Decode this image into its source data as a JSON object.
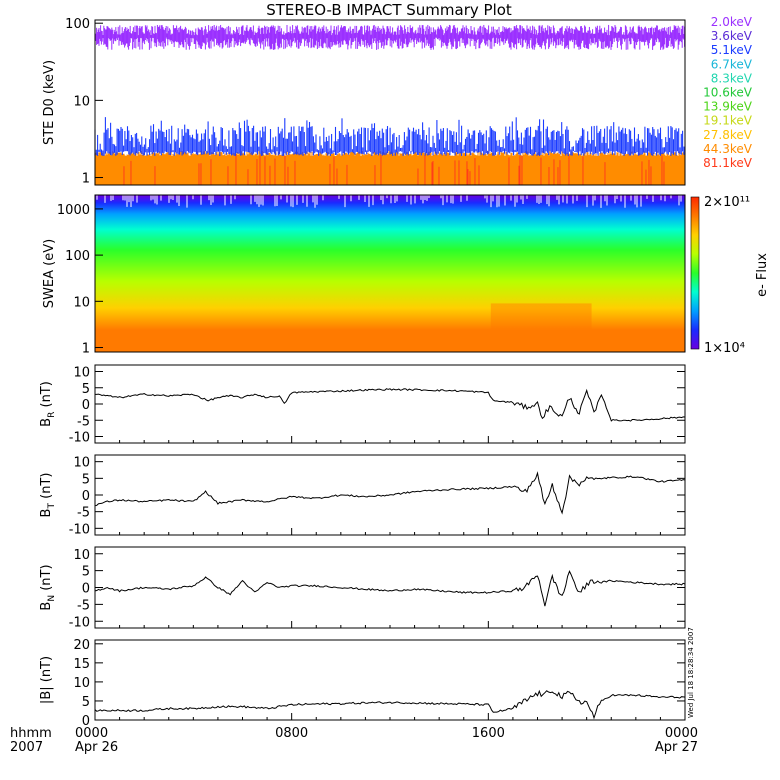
{
  "chart_data": {
    "title": "STEREO-B IMPACT Summary Plot",
    "type": "line",
    "x_axis": {
      "time_label": "hhmm",
      "year_label": "2007",
      "ticks": [
        {
          "time": "0000",
          "date": "Apr 26"
        },
        {
          "time": "0800",
          "date": ""
        },
        {
          "time": "1600",
          "date": ""
        },
        {
          "time": "0000",
          "date": "Apr 27"
        }
      ],
      "xlim_hours": [
        0,
        24
      ]
    },
    "stamp": "Wed Jul 18 18:28:34 2007",
    "panels": [
      {
        "id": "ste",
        "type": "line",
        "ylabel": "STE D0 (keV)",
        "yscale": "log",
        "ylim": [
          0.8,
          110
        ],
        "yticks": [
          "1",
          "10",
          "100"
        ],
        "legend": {
          "placement": "right",
          "entries": [
            {
              "label": "2.0keV",
              "color": "#9b30ff"
            },
            {
              "label": "3.6keV",
              "color": "#5a2bd6"
            },
            {
              "label": "5.1keV",
              "color": "#1a3bff"
            },
            {
              "label": "6.7keV",
              "color": "#18b6d8"
            },
            {
              "label": "8.3keV",
              "color": "#22d6b0"
            },
            {
              "label": "10.6keV",
              "color": "#22c838"
            },
            {
              "label": "13.9keV",
              "color": "#4cd417"
            },
            {
              "label": "19.1keV",
              "color": "#c6d817"
            },
            {
              "label": "27.8keV",
              "color": "#ffc000"
            },
            {
              "label": "44.3keV",
              "color": "#ff8c00"
            },
            {
              "label": "81.1keV",
              "color": "#ff3a1a"
            }
          ]
        },
        "series": [
          {
            "name": "2.0keV",
            "typical_range": [
              45,
              95
            ]
          },
          {
            "name": "5.1keV",
            "typical_range": [
              2,
              6
            ]
          },
          {
            "name": "44.3keV",
            "typical_range": [
              1,
              2.1
            ]
          }
        ]
      },
      {
        "id": "swea",
        "type": "heatmap",
        "ylabel": "SWEA (eV)",
        "yscale": "log",
        "ylim": [
          0.8,
          2000
        ],
        "yticks": [
          "1",
          "10",
          "100",
          "1000"
        ],
        "colorbar": {
          "label": "e- Flux",
          "max_label": "2×10¹¹",
          "min_label": "1×10⁴",
          "colors": [
            "#ff2a00",
            "#ff7a00",
            "#ffd000",
            "#b8ff00",
            "#2aff2a",
            "#00ffd0",
            "#00a0ff",
            "#1a2aff",
            "#6a00e0"
          ]
        }
      },
      {
        "id": "br",
        "type": "line",
        "ylabel": "B",
        "ylabel_sub": "R",
        "ylabel_unit": " (nT)",
        "ylim": [
          -12,
          12
        ],
        "yticks": [
          "10",
          "5",
          "0",
          "-5",
          "-10"
        ],
        "x_hours": [
          0,
          0.5,
          1,
          2,
          3,
          4,
          4.6,
          5,
          5.5,
          6,
          6.5,
          7,
          7.5,
          7.7,
          8,
          9,
          10,
          11,
          12,
          13,
          14,
          15,
          16,
          16.2,
          17,
          17.5,
          18,
          18.2,
          18.5,
          19,
          19.3,
          19.7,
          20,
          20.3,
          20.6,
          21,
          22,
          23,
          24
        ],
        "values": [
          3,
          2.5,
          2,
          3,
          2.5,
          3,
          1,
          2,
          2.5,
          2,
          3,
          2,
          2.5,
          0,
          3.5,
          3.8,
          4,
          4.3,
          4.5,
          4.4,
          4.2,
          4,
          3.5,
          1,
          0.5,
          -1,
          0,
          -4,
          -1,
          -4,
          2,
          -3,
          4,
          -3,
          3,
          -5,
          -5,
          -4.5,
          -4
        ]
      },
      {
        "id": "bt",
        "type": "line",
        "ylabel": "B",
        "ylabel_sub": "T",
        "ylabel_unit": " (nT)",
        "ylim": [
          -12,
          12
        ],
        "yticks": [
          "10",
          "5",
          "0",
          "-5",
          "-10"
        ],
        "x_hours": [
          0,
          0.5,
          1,
          2,
          3,
          4,
          4.5,
          5,
          6,
          7,
          8,
          9,
          10,
          11,
          12,
          13,
          14,
          15,
          16,
          17,
          17.5,
          18,
          18.3,
          18.6,
          19,
          19.3,
          19.7,
          20,
          20.3,
          20.6,
          21,
          22,
          23,
          24
        ],
        "values": [
          -3,
          -2,
          -1.5,
          -2,
          -1.5,
          -2,
          1,
          -2.5,
          -1.5,
          -2,
          -0.5,
          -1,
          0,
          -0.5,
          0,
          1,
          1.5,
          1.8,
          2,
          2.5,
          1,
          6,
          -3,
          3,
          -5,
          5,
          3.5,
          5,
          4.5,
          5,
          5.2,
          5.5,
          4,
          4.5
        ]
      },
      {
        "id": "bn",
        "type": "line",
        "ylabel": "B",
        "ylabel_sub": "N",
        "ylabel_unit": " (nT)",
        "ylim": [
          -12,
          12
        ],
        "yticks": [
          "10",
          "5",
          "0",
          "-5",
          "-10"
        ],
        "x_hours": [
          0,
          0.5,
          1,
          2,
          3,
          4,
          4.5,
          5,
          5.5,
          6,
          6.5,
          7,
          7.5,
          8,
          9,
          10,
          11,
          12,
          13,
          14,
          15,
          16,
          17,
          17.5,
          18,
          18.3,
          18.6,
          19,
          19.3,
          19.7,
          20,
          20.3,
          20.6,
          21,
          22,
          23,
          24
        ],
        "values": [
          -1,
          0,
          -1,
          0,
          -0.5,
          0.5,
          3,
          0,
          -2,
          2,
          -1.5,
          1.5,
          0,
          0.5,
          0.5,
          0,
          -0.5,
          -1,
          -0.5,
          -1,
          -1.5,
          -1.5,
          -1,
          0,
          4,
          -5,
          3,
          -3,
          5,
          -2,
          1,
          2,
          1.5,
          2,
          1.5,
          1,
          1
        ]
      },
      {
        "id": "bmag",
        "type": "line",
        "ylabel": "|B| (nT)",
        "ylim": [
          0,
          21
        ],
        "yticks": [
          "20",
          "15",
          "10",
          "5",
          "0"
        ],
        "x_hours": [
          0,
          1,
          2,
          3,
          4,
          5,
          6,
          7,
          8,
          9,
          10,
          11,
          12,
          13,
          14,
          15,
          16,
          16.2,
          17,
          17.5,
          18,
          18.3,
          18.6,
          19,
          19.3,
          19.7,
          20,
          20.3,
          20.6,
          21,
          22,
          23,
          24
        ],
        "values": [
          2.5,
          2.5,
          2.5,
          3,
          3,
          3.5,
          3.5,
          3,
          4,
          4.2,
          4.3,
          4.5,
          4.6,
          4.5,
          4.3,
          4.2,
          4,
          2,
          3,
          5,
          7,
          6.5,
          8,
          6,
          7,
          5,
          4.5,
          1,
          5,
          6.5,
          6.5,
          6,
          6
        ]
      }
    ]
  }
}
